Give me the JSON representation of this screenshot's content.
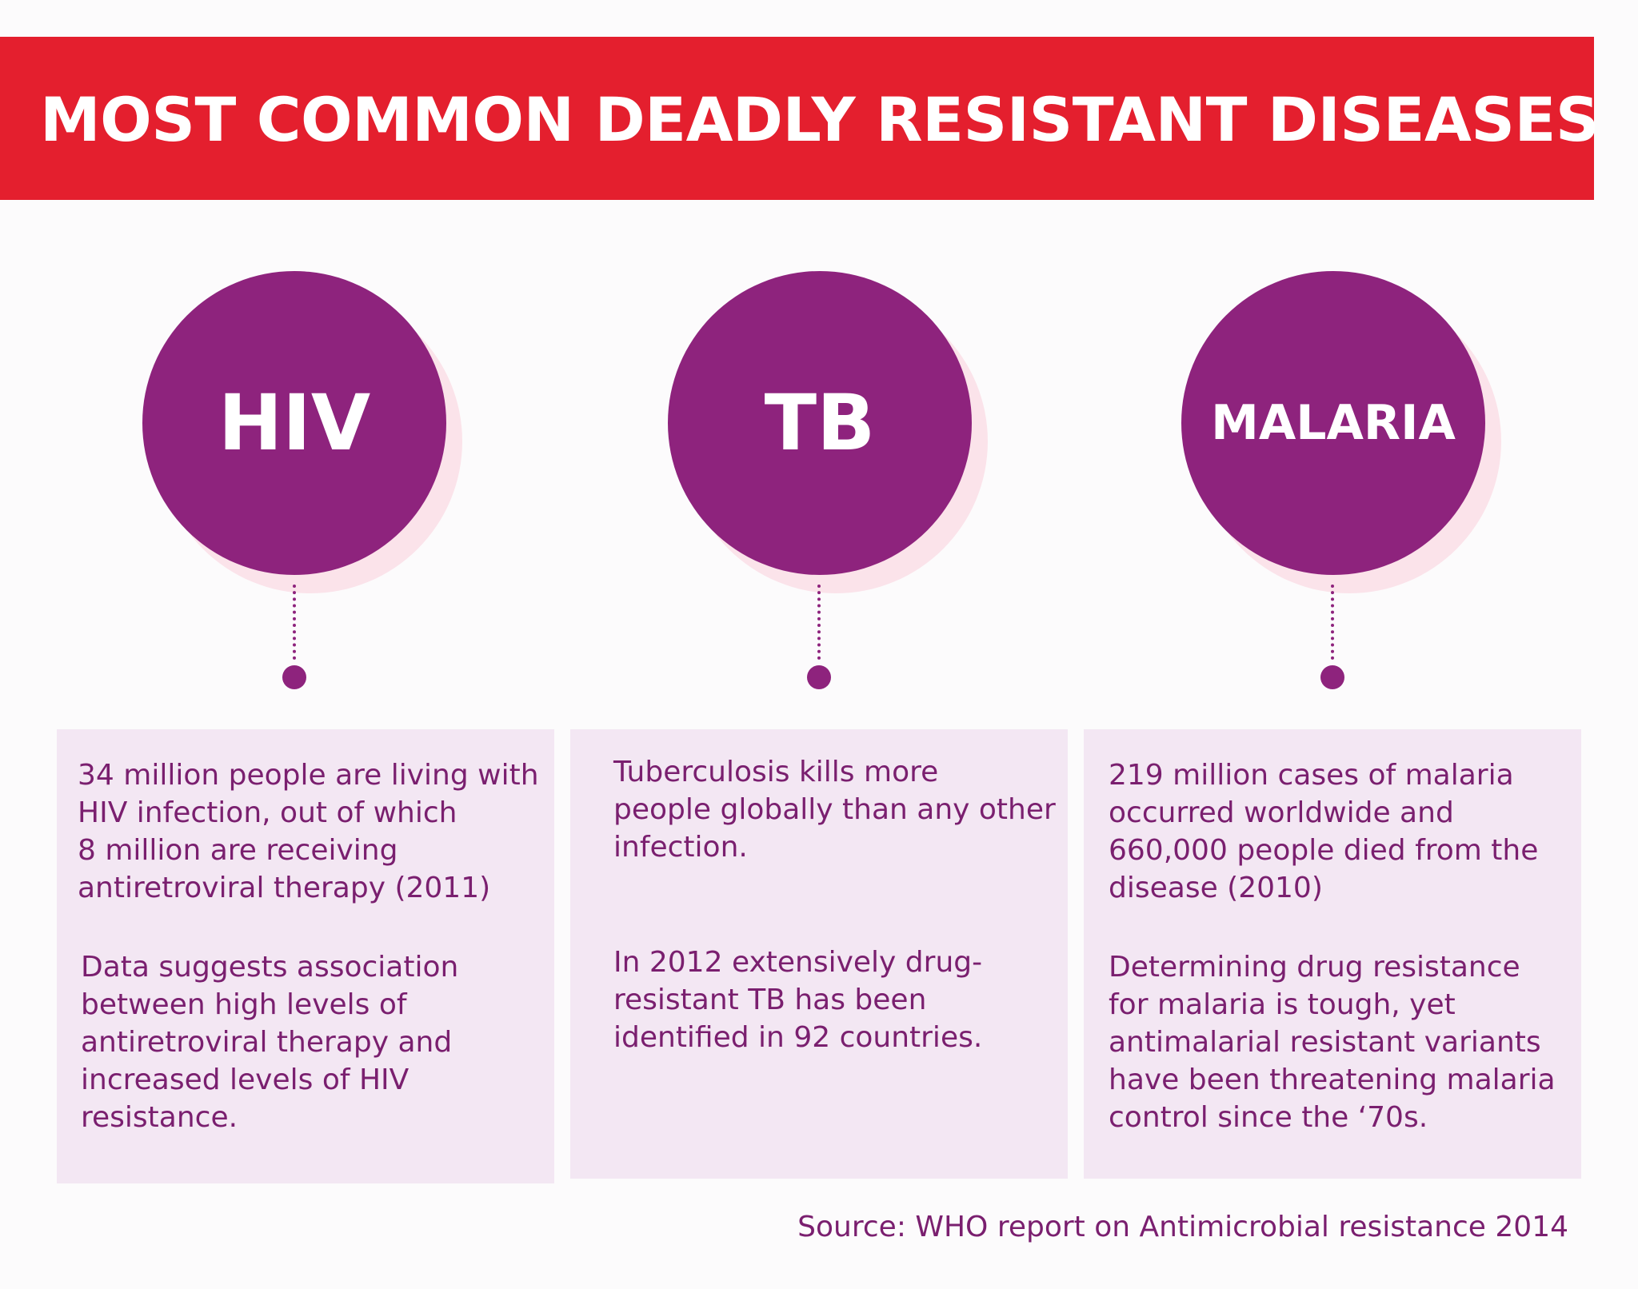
{
  "header": {
    "title": "MOST COMMON DEADLY RESISTANT DISEASES"
  },
  "diseases": [
    {
      "name": "HIV",
      "fact_1": "34 million people are living with\nHIV infection, out of which\n8 million are receiving\nantiretroviral therapy (2011)",
      "fact_2": "Data suggests association\nbetween high levels of\nantiretroviral therapy and\nincreased levels of HIV\nresistance."
    },
    {
      "name": "TB",
      "fact_1": "Tuberculosis kills more\npeople globally than any other\ninfection.",
      "fact_2": "In 2012 extensively drug-\nresistant TB has been\nidentified in 92 countries."
    },
    {
      "name": "MALARIA",
      "fact_1": "219 million cases of malaria\noccurred worldwide and\n660,000 people died from the\ndisease (2010)",
      "fact_2": "Determining drug resistance\nfor malaria is tough, yet\nantimalarial resistant  variants\nhave been threatening malaria\ncontrol since the ‘70s."
    }
  ],
  "footer": {
    "source": "Source: WHO report on Antimicrobial resistance 2014"
  },
  "colors": {
    "banner": "#e41f2e",
    "circle": "#8e237d",
    "circle_shadow": "#fbe3ea",
    "card": "#f3e7f3",
    "text": "#7a1f6f"
  }
}
